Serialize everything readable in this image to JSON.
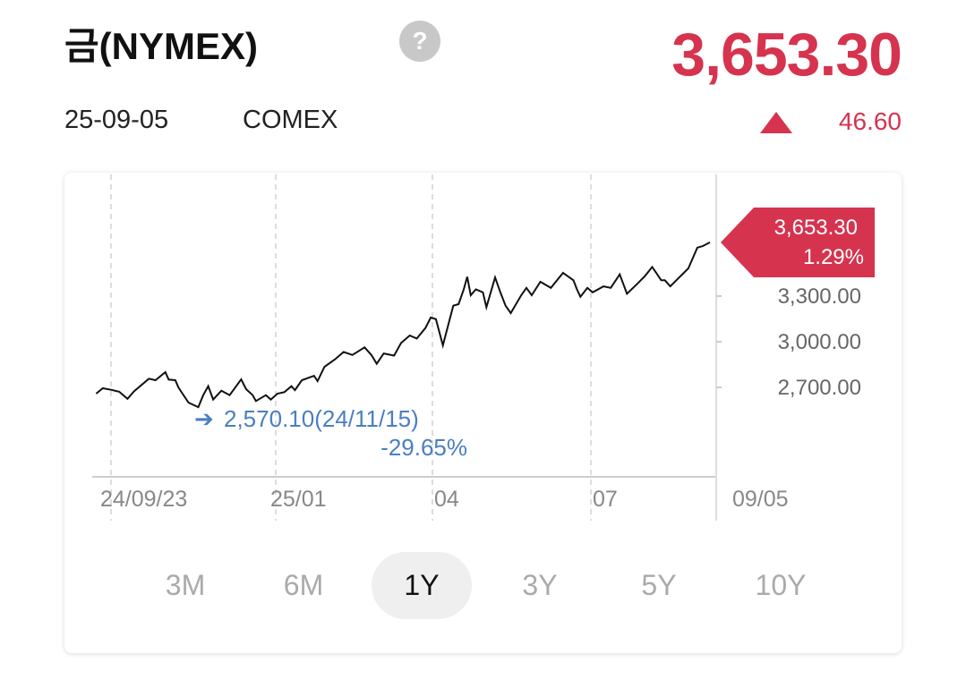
{
  "header": {
    "title": "금(NYMEX)",
    "help_icon": "question-circle-icon",
    "price": "3,653.30",
    "date": "25-09-05",
    "exchange": "COMEX",
    "change_icon": "triangle-up-icon",
    "change": "46.60"
  },
  "colors": {
    "up": "#d6334f",
    "annotation": "#4a7fc1",
    "line": "#111111"
  },
  "periods": [
    {
      "label": "3M"
    },
    {
      "label": "6M"
    },
    {
      "label": "1Y",
      "selected": true
    },
    {
      "label": "3Y"
    },
    {
      "label": "5Y"
    },
    {
      "label": "10Y"
    }
  ],
  "chart_data": {
    "type": "line",
    "x_ticks": [
      "24/09/23",
      "25/01",
      "04",
      "07",
      "09/05"
    ],
    "y_ticks": [
      "2,700.00",
      "3,000.00",
      "3,300.00"
    ],
    "y_tick_values": [
      2700,
      3000,
      3300
    ],
    "grid": "vertical dashed",
    "last_tag": {
      "price": "3,653.30",
      "pct": "1.29%"
    },
    "min_annotation": {
      "text": "2,570.10(24/11/15)",
      "pct": "-29.65%",
      "value": 2570.1,
      "date": "24/11/15"
    },
    "series": [
      {
        "points": [
          [
            "24/09/14",
            2659
          ],
          [
            "24/09/18",
            2694
          ],
          [
            "24/09/23",
            2684
          ],
          [
            "24/09/28",
            2671
          ],
          [
            "24/10/03",
            2625
          ],
          [
            "24/10/07",
            2675
          ],
          [
            "24/10/16",
            2757
          ],
          [
            "24/10/20",
            2747
          ],
          [
            "24/10/26",
            2800
          ],
          [
            "24/10/28",
            2751
          ],
          [
            "24/11/01",
            2747
          ],
          [
            "24/11/03",
            2698
          ],
          [
            "24/11/09",
            2600
          ],
          [
            "24/11/15",
            2570.1
          ],
          [
            "24/11/18",
            2649
          ],
          [
            "24/11/21",
            2708
          ],
          [
            "24/11/24",
            2620
          ],
          [
            "24/11/29",
            2678
          ],
          [
            "24/12/04",
            2649
          ],
          [
            "24/12/11",
            2753
          ],
          [
            "24/12/14",
            2688
          ],
          [
            "24/12/18",
            2649
          ],
          [
            "24/12/20",
            2610
          ],
          [
            "24/12/26",
            2649
          ],
          [
            "24/12/29",
            2620
          ],
          [
            "25/01/02",
            2659
          ],
          [
            "25/01/06",
            2669
          ],
          [
            "25/01/10",
            2708
          ],
          [
            "25/01/12",
            2682
          ],
          [
            "25/01/16",
            2747
          ],
          [
            "25/01/23",
            2776
          ],
          [
            "25/01/25",
            2741
          ],
          [
            "25/01/29",
            2835
          ],
          [
            "25/02/04",
            2884
          ],
          [
            "25/02/09",
            2933
          ],
          [
            "25/02/14",
            2913
          ],
          [
            "25/02/21",
            2963
          ],
          [
            "25/02/25",
            2913
          ],
          [
            "25/02/28",
            2855
          ],
          [
            "25/03/04",
            2923
          ],
          [
            "25/03/10",
            2909
          ],
          [
            "25/03/14",
            2992
          ],
          [
            "25/03/19",
            3041
          ],
          [
            "25/03/23",
            3021
          ],
          [
            "25/03/28",
            3090
          ],
          [
            "25/03/31",
            3159
          ],
          [
            "25/04/03",
            3149
          ],
          [
            "25/04/07",
            2976
          ],
          [
            "25/04/13",
            3237
          ],
          [
            "25/04/16",
            3247
          ],
          [
            "25/04/19",
            3345
          ],
          [
            "25/04/21",
            3427
          ],
          [
            "25/04/23",
            3306
          ],
          [
            "25/04/26",
            3345
          ],
          [
            "25/04/30",
            3325
          ],
          [
            "25/05/02",
            3227
          ],
          [
            "25/05/07",
            3423
          ],
          [
            "25/05/10",
            3325
          ],
          [
            "25/05/13",
            3237
          ],
          [
            "25/05/16",
            3188
          ],
          [
            "25/05/22",
            3306
          ],
          [
            "25/05/25",
            3354
          ],
          [
            "25/05/28",
            3306
          ],
          [
            "25/06/02",
            3394
          ],
          [
            "25/06/08",
            3354
          ],
          [
            "25/06/15",
            3453
          ],
          [
            "25/06/21",
            3404
          ],
          [
            "25/06/23",
            3345
          ],
          [
            "25/06/25",
            3296
          ],
          [
            "25/06/29",
            3354
          ],
          [
            "25/07/02",
            3325
          ],
          [
            "25/07/08",
            3364
          ],
          [
            "25/07/12",
            3354
          ],
          [
            "25/07/17",
            3443
          ],
          [
            "25/07/21",
            3316
          ],
          [
            "25/07/27",
            3384
          ],
          [
            "25/07/31",
            3433
          ],
          [
            "25/08/04",
            3492
          ],
          [
            "25/08/09",
            3404
          ],
          [
            "25/08/11",
            3404
          ],
          [
            "25/08/14",
            3364
          ],
          [
            "25/08/19",
            3423
          ],
          [
            "25/08/24",
            3482
          ],
          [
            "25/08/29",
            3619
          ],
          [
            "25/09/01",
            3629
          ],
          [
            "25/09/05",
            3653.3
          ]
        ]
      }
    ]
  }
}
